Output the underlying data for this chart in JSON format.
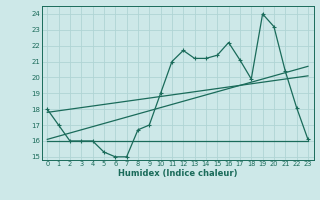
{
  "xlabel": "Humidex (Indice chaleur)",
  "bg_color": "#cde8e8",
  "grid_color": "#b0d4d4",
  "line_color": "#1a6b5a",
  "xlim": [
    -0.5,
    23.5
  ],
  "ylim": [
    14.8,
    24.5
  ],
  "yticks": [
    15,
    16,
    17,
    18,
    19,
    20,
    21,
    22,
    23,
    24
  ],
  "xticks": [
    0,
    1,
    2,
    3,
    4,
    5,
    6,
    7,
    8,
    9,
    10,
    11,
    12,
    13,
    14,
    15,
    16,
    17,
    18,
    19,
    20,
    21,
    22,
    23
  ],
  "line1_x": [
    0,
    1,
    2,
    3,
    4,
    5,
    6,
    7,
    8,
    9,
    10,
    11,
    12,
    13,
    14,
    15,
    16,
    17,
    18,
    19,
    20,
    21,
    22,
    23
  ],
  "line1_y": [
    18.0,
    17.0,
    16.0,
    16.0,
    16.0,
    15.3,
    15.0,
    15.0,
    16.7,
    17.0,
    19.0,
    21.0,
    21.7,
    21.2,
    21.2,
    21.4,
    22.2,
    21.1,
    19.9,
    24.0,
    23.2,
    20.4,
    18.1,
    16.1
  ],
  "line2_x": [
    0,
    23
  ],
  "line2_y": [
    16.0,
    16.0
  ],
  "line3_x": [
    0,
    23
  ],
  "line3_y": [
    16.1,
    20.7
  ],
  "line4_x": [
    0,
    23
  ],
  "line4_y": [
    17.8,
    20.1
  ]
}
